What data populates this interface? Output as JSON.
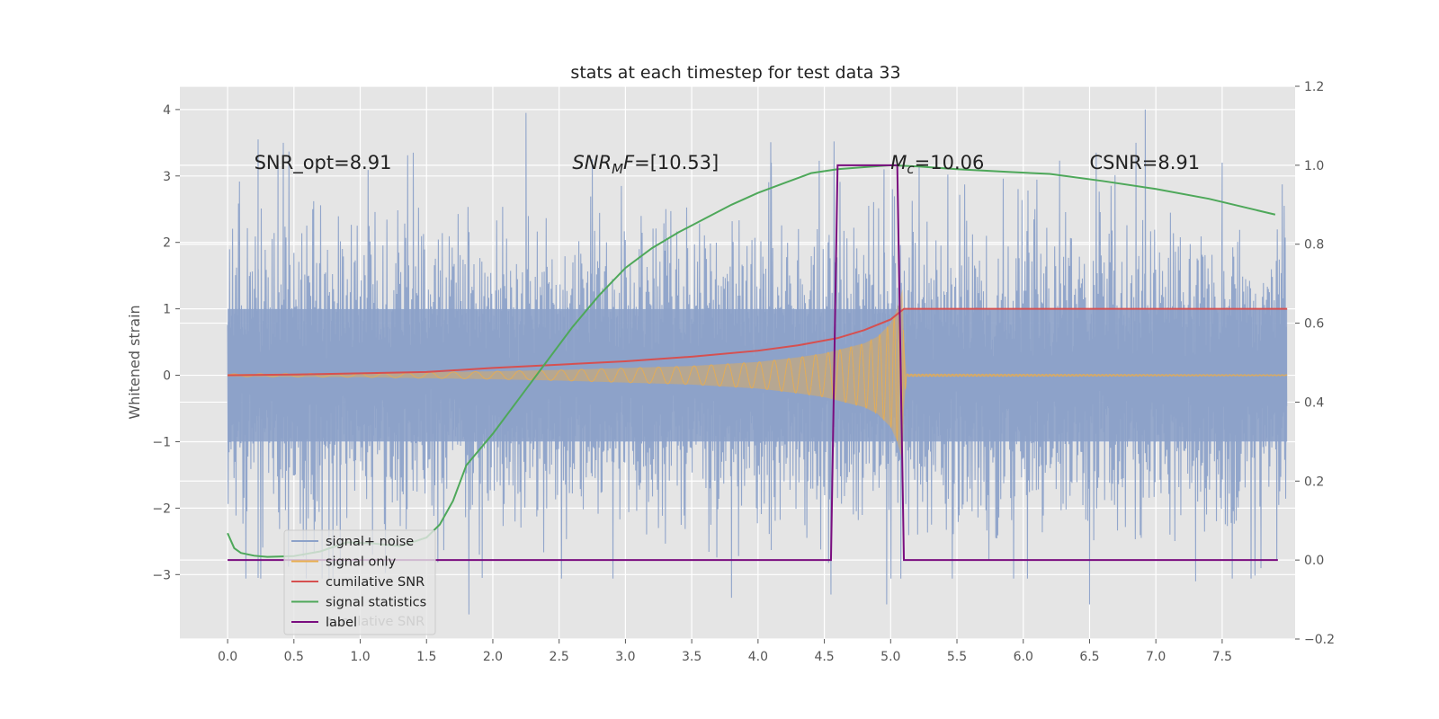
{
  "chart_data": {
    "type": "line",
    "title": "stats at each timestep for test data 33",
    "ylabel": "Whitened strain",
    "xlabel": "",
    "xlim": [
      -0.36,
      8.05
    ],
    "ylim": [
      -3.97,
      4.35
    ],
    "y2lim": [
      -0.2,
      1.2
    ],
    "grid": true,
    "legend_placement": "lower-left",
    "x_ticks": [
      0.0,
      0.5,
      1.0,
      1.5,
      2.0,
      2.5,
      3.0,
      3.5,
      4.0,
      4.5,
      5.0,
      5.5,
      6.0,
      6.5,
      7.0,
      7.5
    ],
    "x_tick_labels": [
      "0.0",
      "0.5",
      "1.0",
      "1.5",
      "2.0",
      "2.5",
      "3.0",
      "3.5",
      "4.0",
      "4.5",
      "5.0",
      "5.5",
      "6.0",
      "6.5",
      "7.0",
      "7.5"
    ],
    "y_ticks": [
      -3,
      -2,
      -1,
      0,
      1,
      2,
      3,
      4
    ],
    "y_tick_labels": [
      "−3",
      "−2",
      "−1",
      "0",
      "1",
      "2",
      "3",
      "4"
    ],
    "y2_ticks": [
      -0.2,
      0.0,
      0.2,
      0.4,
      0.6,
      0.8,
      1.0,
      1.2
    ],
    "y2_tick_labels": [
      "−0.2",
      "0.0",
      "0.2",
      "0.4",
      "0.6",
      "0.8",
      "1.0",
      "1.2"
    ],
    "annotations": [
      {
        "id": "snr-opt",
        "x": 0.2,
        "y": 3.2,
        "parts": [
          {
            "t": "SNR_opt=8.91"
          }
        ]
      },
      {
        "id": "snr-mf",
        "x": 2.6,
        "y": 3.2,
        "parts": [
          {
            "t": "SNR",
            "italic": true
          },
          {
            "t": "M",
            "italic": true,
            "sub": true
          },
          {
            "t": "F",
            "italic": true
          },
          {
            "t": "=[10.53]"
          }
        ]
      },
      {
        "id": "mc",
        "x": 5.0,
        "y": 3.2,
        "parts": [
          {
            "t": "M",
            "italic": true
          },
          {
            "t": "c",
            "italic": true,
            "sub": true
          },
          {
            "t": "=10.06"
          }
        ]
      },
      {
        "id": "csnr",
        "x": 6.5,
        "y": 3.2,
        "parts": [
          {
            "t": "CSNR=8.91"
          }
        ]
      }
    ],
    "series": [
      {
        "name": "signal+ noise",
        "axis": "left",
        "color": "#8da2c9",
        "x_range": [
          0.0,
          7.99
        ],
        "envelope_core": 1.0,
        "peak_max": 4.0,
        "peak_min": -3.6,
        "peaks": [
          {
            "x": 0.23,
            "y": 3.55
          },
          {
            "x": 0.42,
            "y": 3.5
          },
          {
            "x": 0.38,
            "y": 3.25
          },
          {
            "x": 1.4,
            "y": 3.35
          },
          {
            "x": 2.25,
            "y": 3.95
          },
          {
            "x": 2.75,
            "y": 3.25
          },
          {
            "x": 4.1,
            "y": 3.2
          },
          {
            "x": 4.95,
            "y": 3.1
          },
          {
            "x": 6.55,
            "y": 3.35
          },
          {
            "x": 6.92,
            "y": 4.0
          },
          {
            "x": 6.85,
            "y": 3.5
          },
          {
            "x": 7.5,
            "y": 3.2
          },
          {
            "x": 0.85,
            "y": -2.9
          },
          {
            "x": 1.82,
            "y": -3.6
          },
          {
            "x": 1.92,
            "y": -3.05
          },
          {
            "x": 3.8,
            "y": -3.35
          },
          {
            "x": 4.55,
            "y": -3.3
          },
          {
            "x": 4.97,
            "y": -3.45
          },
          {
            "x": 6.5,
            "y": -3.45
          },
          {
            "x": 7.3,
            "y": -3.1
          },
          {
            "x": 0.23,
            "y": -3.05
          }
        ]
      },
      {
        "name": "signal only",
        "axis": "left",
        "color": "#e8ad4f",
        "amplitude_x": [
          0.0,
          1.0,
          2.0,
          2.5,
          3.0,
          3.5,
          4.0,
          4.3,
          4.5,
          4.6,
          4.8,
          4.9,
          5.0,
          5.05,
          5.09,
          5.1,
          5.12,
          7.99
        ],
        "amplitude": [
          0.02,
          0.03,
          0.06,
          0.08,
          0.11,
          0.14,
          0.2,
          0.27,
          0.33,
          0.38,
          0.48,
          0.58,
          0.78,
          1.0,
          1.3,
          0.5,
          0.02,
          0.01
        ]
      },
      {
        "name": "cumilative SNR",
        "axis": "left",
        "color": "#d65050",
        "x": [
          0.0,
          0.5,
          1.0,
          1.5,
          2.0,
          2.5,
          3.0,
          3.5,
          4.0,
          4.3,
          4.6,
          4.8,
          5.0,
          5.1,
          5.12,
          7.99
        ],
        "values": [
          0.0,
          0.01,
          0.03,
          0.05,
          0.11,
          0.16,
          0.21,
          0.28,
          0.37,
          0.45,
          0.56,
          0.68,
          0.84,
          1.0,
          1.0,
          1.0
        ]
      },
      {
        "name": "signal statistics",
        "axis": "right",
        "color": "#4ea85a",
        "x": [
          0.0,
          0.05,
          0.1,
          0.2,
          0.3,
          0.5,
          0.7,
          0.9,
          1.1,
          1.3,
          1.5,
          1.6,
          1.7,
          1.8,
          2.0,
          2.2,
          2.4,
          2.6,
          2.8,
          3.0,
          3.2,
          3.4,
          3.6,
          3.8,
          4.0,
          4.2,
          4.4,
          4.6,
          4.8,
          5.0,
          5.2,
          5.5,
          5.9,
          6.2,
          6.6,
          7.0,
          7.4,
          7.9
        ],
        "values": [
          0.068,
          0.03,
          0.018,
          0.011,
          0.008,
          0.01,
          0.022,
          0.045,
          0.042,
          0.035,
          0.057,
          0.09,
          0.15,
          0.24,
          0.32,
          0.41,
          0.5,
          0.59,
          0.67,
          0.74,
          0.79,
          0.83,
          0.865,
          0.9,
          0.93,
          0.955,
          0.98,
          0.99,
          0.995,
          1.0,
          0.997,
          0.99,
          0.983,
          0.978,
          0.96,
          0.94,
          0.915,
          0.875
        ]
      },
      {
        "name": "label",
        "axis": "right",
        "color": "#7a0d7f",
        "x": [
          0.0,
          4.55,
          4.6,
          5.05,
          5.1,
          7.92
        ],
        "values": [
          0.0,
          0.0,
          1.0,
          1.0,
          0.0,
          0.0
        ]
      }
    ],
    "legend_ghost_text": "cumilative SNR"
  }
}
